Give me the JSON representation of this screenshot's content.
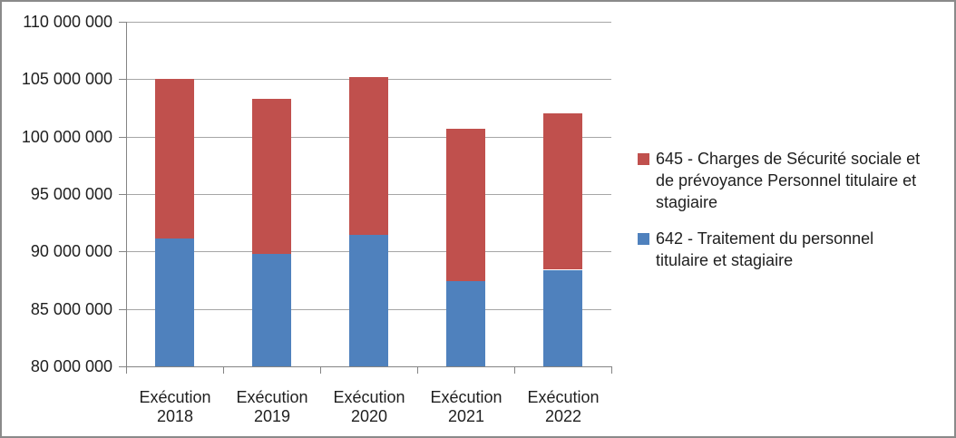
{
  "window": {
    "background": "#ffffff",
    "border_color": "#8a8a8a"
  },
  "colors": {
    "gridline": "#a6a6a6",
    "axis": "#848484",
    "text": "#1f1f1f",
    "series_blue": "#4f81bd",
    "series_red": "#c0504d"
  },
  "chart_data": {
    "type": "bar",
    "variant": "stacked-column",
    "title": "",
    "xlabel": "",
    "ylabel": "",
    "grid": "horizontal",
    "legend_position": "right",
    "categories": [
      "Exécution 2018",
      "Exécution 2019",
      "Exécution 2020",
      "Exécution 2021",
      "Exécution 2022"
    ],
    "category_label_lines": [
      [
        "Exécution",
        "2018"
      ],
      [
        "Exécution",
        "2019"
      ],
      [
        "Exécution",
        "2020"
      ],
      [
        "Exécution",
        "2021"
      ],
      [
        "Exécution",
        "2022"
      ]
    ],
    "series": [
      {
        "id": "642",
        "name": "642 - Traitement du personnel titulaire et stagiaire",
        "color": "#4f81bd",
        "values": [
          91100000,
          89800000,
          91500000,
          87400000,
          88400000
        ]
      },
      {
        "id": "645",
        "name": "645 - Charges de Sécurité sociale et de prévoyance Personnel titulaire et stagiaire",
        "color": "#c0504d",
        "values": [
          13900000,
          13500000,
          13700000,
          13300000,
          13600000
        ]
      }
    ],
    "stacked_totals": [
      105000000,
      103300000,
      105200000,
      100700000,
      102000000
    ],
    "ylim": [
      80000000,
      110000000
    ],
    "ytick_step": 5000000,
    "yticks": [
      {
        "value": 110000000,
        "label": "110 000 000"
      },
      {
        "value": 105000000,
        "label": "105 000 000"
      },
      {
        "value": 100000000,
        "label": "100 000 000"
      },
      {
        "value": 95000000,
        "label": "95 000 000"
      },
      {
        "value": 90000000,
        "label": "90 000 000"
      },
      {
        "value": 85000000,
        "label": "85 000 000"
      },
      {
        "value": 80000000,
        "label": "80 000 000"
      }
    ]
  },
  "legend": {
    "entries": [
      {
        "series": "645",
        "color": "#c0504d",
        "label": "645 - Charges de Sécurité sociale et de prévoyance Personnel titulaire et stagiaire",
        "lines": [
          "645 - Charges de Sécurité sociale et",
          "de prévoyance Personnel titulaire et",
          "stagiaire"
        ]
      },
      {
        "series": "642",
        "color": "#4f81bd",
        "label": "642 - Traitement du personnel titulaire et stagiaire",
        "lines": [
          "642 - Traitement du personnel",
          "titulaire et stagiaire"
        ]
      }
    ]
  }
}
